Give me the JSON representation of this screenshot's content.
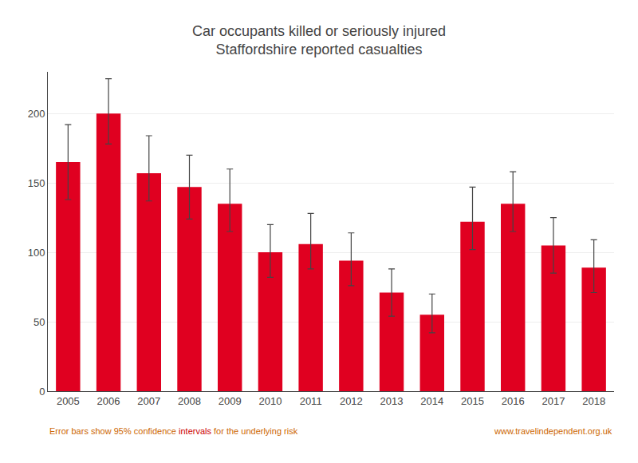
{
  "chart_data": {
    "type": "bar",
    "title": "Car occupants killed or seriously injured",
    "subtitle": "Staffordshire reported casualties",
    "categories": [
      "2005",
      "2006",
      "2007",
      "2008",
      "2009",
      "2010",
      "2011",
      "2012",
      "2013",
      "2014",
      "2015",
      "2016",
      "2017",
      "2018"
    ],
    "values": [
      165,
      200,
      157,
      147,
      135,
      100,
      106,
      94,
      71,
      55,
      122,
      135,
      105,
      89
    ],
    "err_upper": [
      27,
      25,
      27,
      23,
      25,
      20,
      22,
      20,
      17,
      15,
      25,
      23,
      20,
      20
    ],
    "err_lower": [
      27,
      22,
      20,
      23,
      20,
      18,
      18,
      18,
      17,
      13,
      20,
      20,
      20,
      18
    ],
    "color": "#e00020",
    "ylim": [
      0,
      230
    ],
    "yticks": [
      0,
      50,
      100,
      150,
      200
    ],
    "grid": true,
    "annotations": [
      {
        "text": "Error bars show 95% confidence ",
        "color": "#cc6600"
      },
      {
        "text": "intervals",
        "color": "#cc0000"
      },
      {
        "text": " for the underlying risk",
        "color": "#cc6600"
      },
      {
        "text": "www.travelindependent.org.uk",
        "color": "#cc6600"
      }
    ]
  }
}
